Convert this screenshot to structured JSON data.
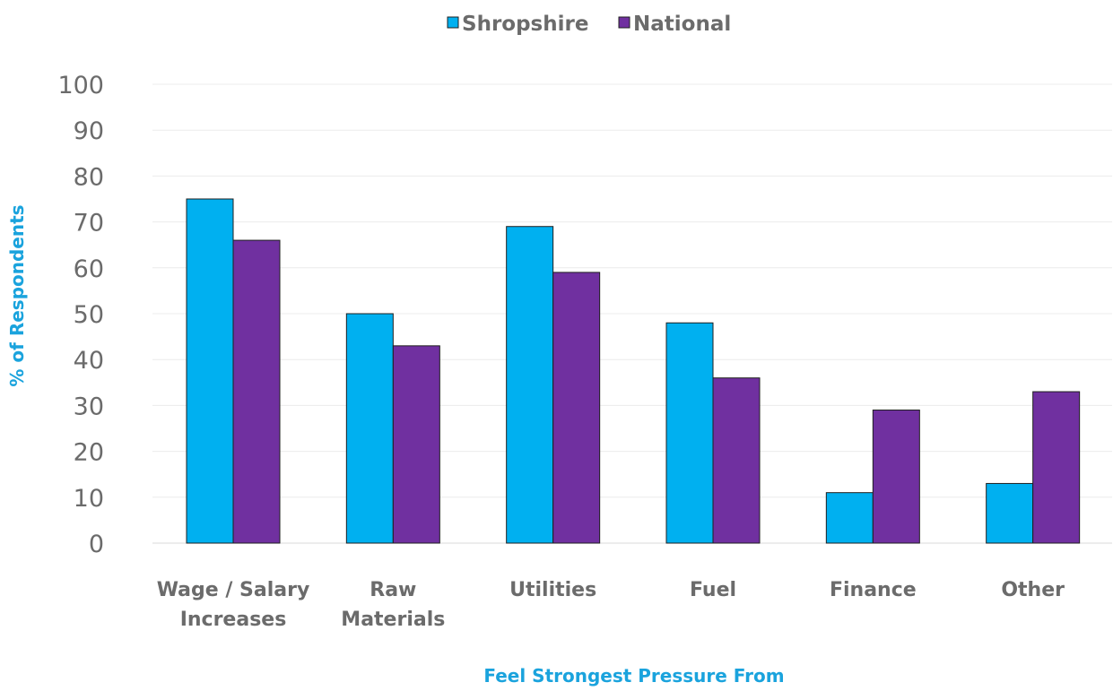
{
  "chart_data": {
    "type": "bar",
    "categories": [
      [
        "Wage / Salary",
        "Increases"
      ],
      [
        "Raw",
        "Materials"
      ],
      [
        "Utilities"
      ],
      [
        "Fuel"
      ],
      [
        "Finance"
      ],
      [
        "Other"
      ]
    ],
    "series": [
      {
        "name": "Shropshire",
        "color": "#00b0f0",
        "values": [
          75,
          50,
          69,
          48,
          11,
          13
        ]
      },
      {
        "name": "National",
        "color": "#7030a0",
        "values": [
          66,
          43,
          59,
          36,
          29,
          33
        ]
      }
    ],
    "xlabel": "Feel Strongest Pressure From",
    "ylabel": "% of Respondents",
    "ylim": [
      0,
      100
    ],
    "yticks": [
      0,
      10,
      20,
      30,
      40,
      50,
      60,
      70,
      80,
      90,
      100
    ],
    "grid": true,
    "legend_position": "top-center"
  }
}
